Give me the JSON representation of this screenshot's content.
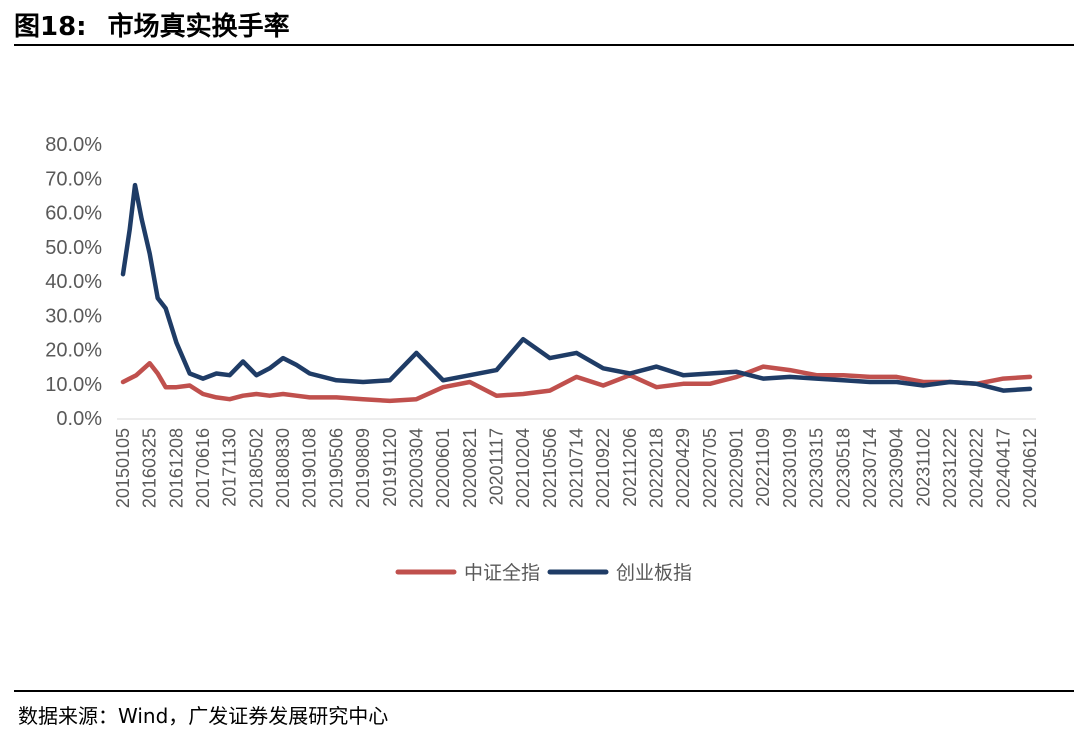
{
  "header": {
    "figure_label": "图18:",
    "title": "市场真实换手率"
  },
  "footer": {
    "source": "数据来源：Wind，广发证券发展研究中心"
  },
  "chart_data": {
    "type": "line",
    "y_ticks": [
      "0.0%",
      "10.0%",
      "20.0%",
      "30.0%",
      "40.0%",
      "50.0%",
      "60.0%",
      "70.0%",
      "80.0%"
    ],
    "ylim": [
      0,
      80
    ],
    "x_ticks": [
      "20150105",
      "20160325",
      "20161208",
      "20170616",
      "20171130",
      "20180502",
      "20180830",
      "20190108",
      "20190506",
      "20190809",
      "20191120",
      "20200304",
      "20200601",
      "20200821",
      "20201117",
      "20210204",
      "20210506",
      "20210714",
      "20210922",
      "20211206",
      "20220218",
      "20220429",
      "20220705",
      "20220901",
      "20221109",
      "20230109",
      "20230315",
      "20230518",
      "20230714",
      "20230904",
      "20231102",
      "20231222",
      "20240222",
      "20240417",
      "20240612"
    ],
    "grid": false,
    "legend_position": "bottom",
    "series": [
      {
        "name": "中证全指",
        "color": "#c0504d",
        "t": [
          0,
          0.5,
          1,
          1.3,
          1.6,
          2,
          2.5,
          3,
          3.5,
          4,
          4.5,
          5,
          5.5,
          6,
          6.5,
          7,
          8,
          9,
          10,
          11,
          12,
          13,
          14,
          15,
          16,
          17,
          18,
          19,
          20,
          21,
          22,
          23,
          24,
          25,
          26,
          27,
          28,
          29,
          30,
          31,
          32,
          33,
          34
        ],
        "values": [
          10.5,
          12.5,
          16,
          13,
          9,
          9,
          9.5,
          7,
          6,
          5.5,
          6.5,
          7,
          6.5,
          7,
          6.5,
          6,
          6,
          5.5,
          5,
          5.5,
          9,
          10.5,
          6.5,
          7,
          8,
          12,
          9.5,
          12.5,
          9,
          10,
          10,
          12,
          15,
          14,
          12.5,
          12.5,
          12,
          12,
          10.5,
          10.5,
          10,
          11.5,
          12
        ]
      },
      {
        "name": "创业板指",
        "color": "#1f3c66",
        "t": [
          0,
          0.25,
          0.45,
          0.7,
          1,
          1.3,
          1.6,
          2,
          2.5,
          3,
          3.5,
          4,
          4.5,
          5,
          5.5,
          6,
          6.5,
          7,
          8,
          9,
          10,
          11,
          12,
          13,
          14,
          15,
          16,
          17,
          18,
          19,
          20,
          21,
          22,
          23,
          24,
          25,
          26,
          27,
          28,
          29,
          30,
          31,
          32,
          33,
          34
        ],
        "values": [
          42,
          55,
          68,
          58,
          48,
          35,
          32,
          22,
          13,
          11.5,
          13,
          12.5,
          16.5,
          12.5,
          14.5,
          17.5,
          15.5,
          13,
          11,
          10.5,
          11,
          19,
          11,
          12.5,
          14,
          23,
          17.5,
          19,
          14.5,
          13,
          15,
          12.5,
          13,
          13.5,
          11.5,
          12,
          11.5,
          11,
          10.5,
          10.5,
          9.5,
          10.5,
          10,
          8,
          8.5
        ]
      }
    ]
  }
}
